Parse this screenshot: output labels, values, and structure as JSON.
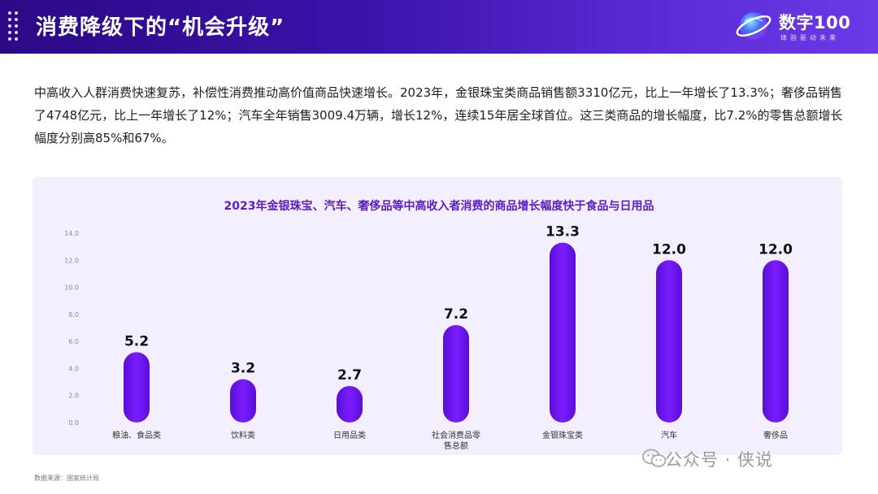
{
  "header": {
    "title": "消费降级下的“机会升级”"
  },
  "logo": {
    "name": "数字100",
    "tagline": "体验驱动未来"
  },
  "intro": "中高收入人群消费快速复苏，补偿性消费推动高价值商品快速增长。2023年，金银珠宝类商品销售额3310亿元，比上一年增长了13.3%；奢侈品销售了4748亿元，比上一年增长了12%；汽车全年销售3009.4万辆，增长12%，连续15年居全球首位。这三类商品的增长幅度，比7.2%的零售总额增长幅度分别高85%和67%。",
  "chart_data": {
    "type": "bar",
    "title": "2023年金银珠宝、汽车、奢侈品等中高收入者消费的商品增长幅度快于食品与日用品",
    "categories": [
      "粮油、食品类",
      "饮料类",
      "日用品类",
      "社会消费品零售总额",
      "金银珠宝类",
      "汽车",
      "奢侈品"
    ],
    "values": [
      5.2,
      3.2,
      2.7,
      7.2,
      13.3,
      12.0,
      12.0
    ],
    "value_labels": [
      "5.2",
      "3.2",
      "2.7",
      "7.2",
      "13.3",
      "12.0",
      "12.0"
    ],
    "y_ticks": [
      "0.0",
      "2.0",
      "4.0",
      "6.0",
      "8.0",
      "10.0",
      "12.0",
      "14.0"
    ],
    "ylim": [
      0,
      14
    ],
    "xlabel": "",
    "ylabel": "",
    "grid": false,
    "bar_color": "#6c12e6",
    "bar_color_light": "#8a2cff"
  },
  "footer": {
    "source": "数据来源：国家统计局"
  },
  "watermark": {
    "text": "公众号 · 侠说"
  }
}
